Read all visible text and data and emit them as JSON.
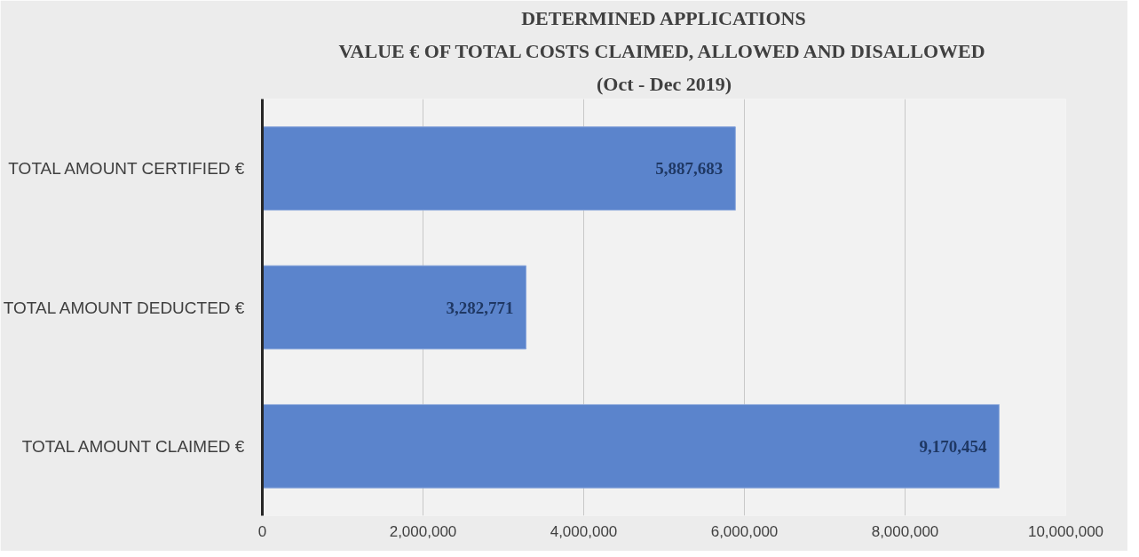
{
  "chart_data": {
    "type": "bar",
    "orientation": "horizontal",
    "title": "DETERMINED APPLICATIONS",
    "subtitle": "VALUE € OF TOTAL COSTS CLAIMED, ALLOWED AND DISALLOWED",
    "annotations": [
      "(Oct - Dec 2019)"
    ],
    "categories": [
      "TOTAL AMOUNT CERTIFIED €",
      "TOTAL AMOUNT DEDUCTED €",
      "TOTAL AMOUNT CLAIMED €"
    ],
    "values": [
      5887683,
      3282771,
      9170454
    ],
    "color": "#5b84cc",
    "xlim": [
      0,
      10000000
    ],
    "xticks": [
      0,
      {
        "value": 2000000,
        "label": "2,000,000"
      },
      {
        "value": 4000000,
        "label": "4,000,000"
      },
      {
        "value": 6000000,
        "label": "6,000,000"
      },
      {
        "value": 8000000,
        "label": "8,000,000"
      },
      {
        "value": 10000000,
        "label": "10,000,000"
      }
    ],
    "grid": "x",
    "value_labels": [
      "5,887,683",
      "3,282,771",
      "9,170,454"
    ]
  }
}
